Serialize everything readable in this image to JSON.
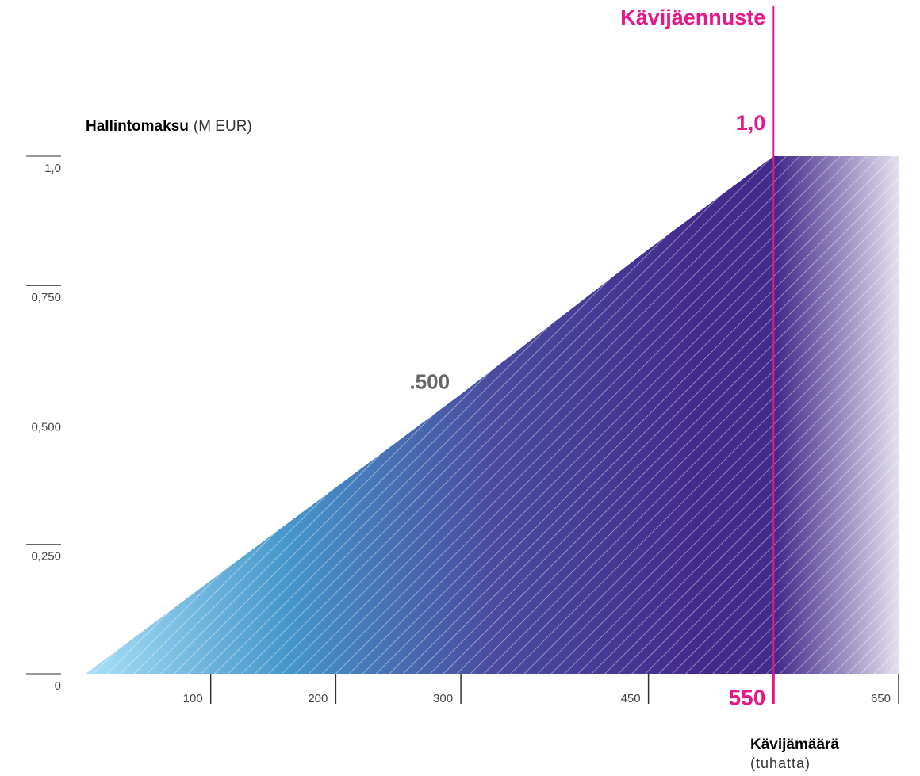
{
  "chart_data": {
    "type": "area",
    "y_label_bold": "Hallintomaksu",
    "y_label_unit": "(M EUR)",
    "x_label_bold": "Kävijämäärä",
    "x_label_unit": "(tuhatta)",
    "x": [
      0,
      300,
      450,
      550,
      650
    ],
    "values": [
      0,
      0.54,
      0.82,
      1.0,
      1.0
    ],
    "gradient": [
      "#a9e0f6",
      "#4596cb",
      "#4a4b9f",
      "#432b8c",
      "#432b8c"
    ],
    "xlim": [
      0,
      650
    ],
    "ylim": [
      0,
      1.0
    ],
    "xticks": [
      100,
      200,
      300,
      450,
      550,
      650
    ],
    "yticks": [
      0,
      {
        "value": 0.25,
        "label": "0,250"
      },
      {
        "value": 0.5,
        "label": "0,500"
      },
      {
        "value": 0.75,
        "label": "0,750"
      },
      {
        "value": 1.0,
        "label": "1,0"
      }
    ],
    "annotation": ".500",
    "forecast": {
      "label": "Kävijäennuste",
      "x": 550,
      "value": 1.0,
      "value_label": "1,0",
      "color": "#e6178b"
    }
  }
}
